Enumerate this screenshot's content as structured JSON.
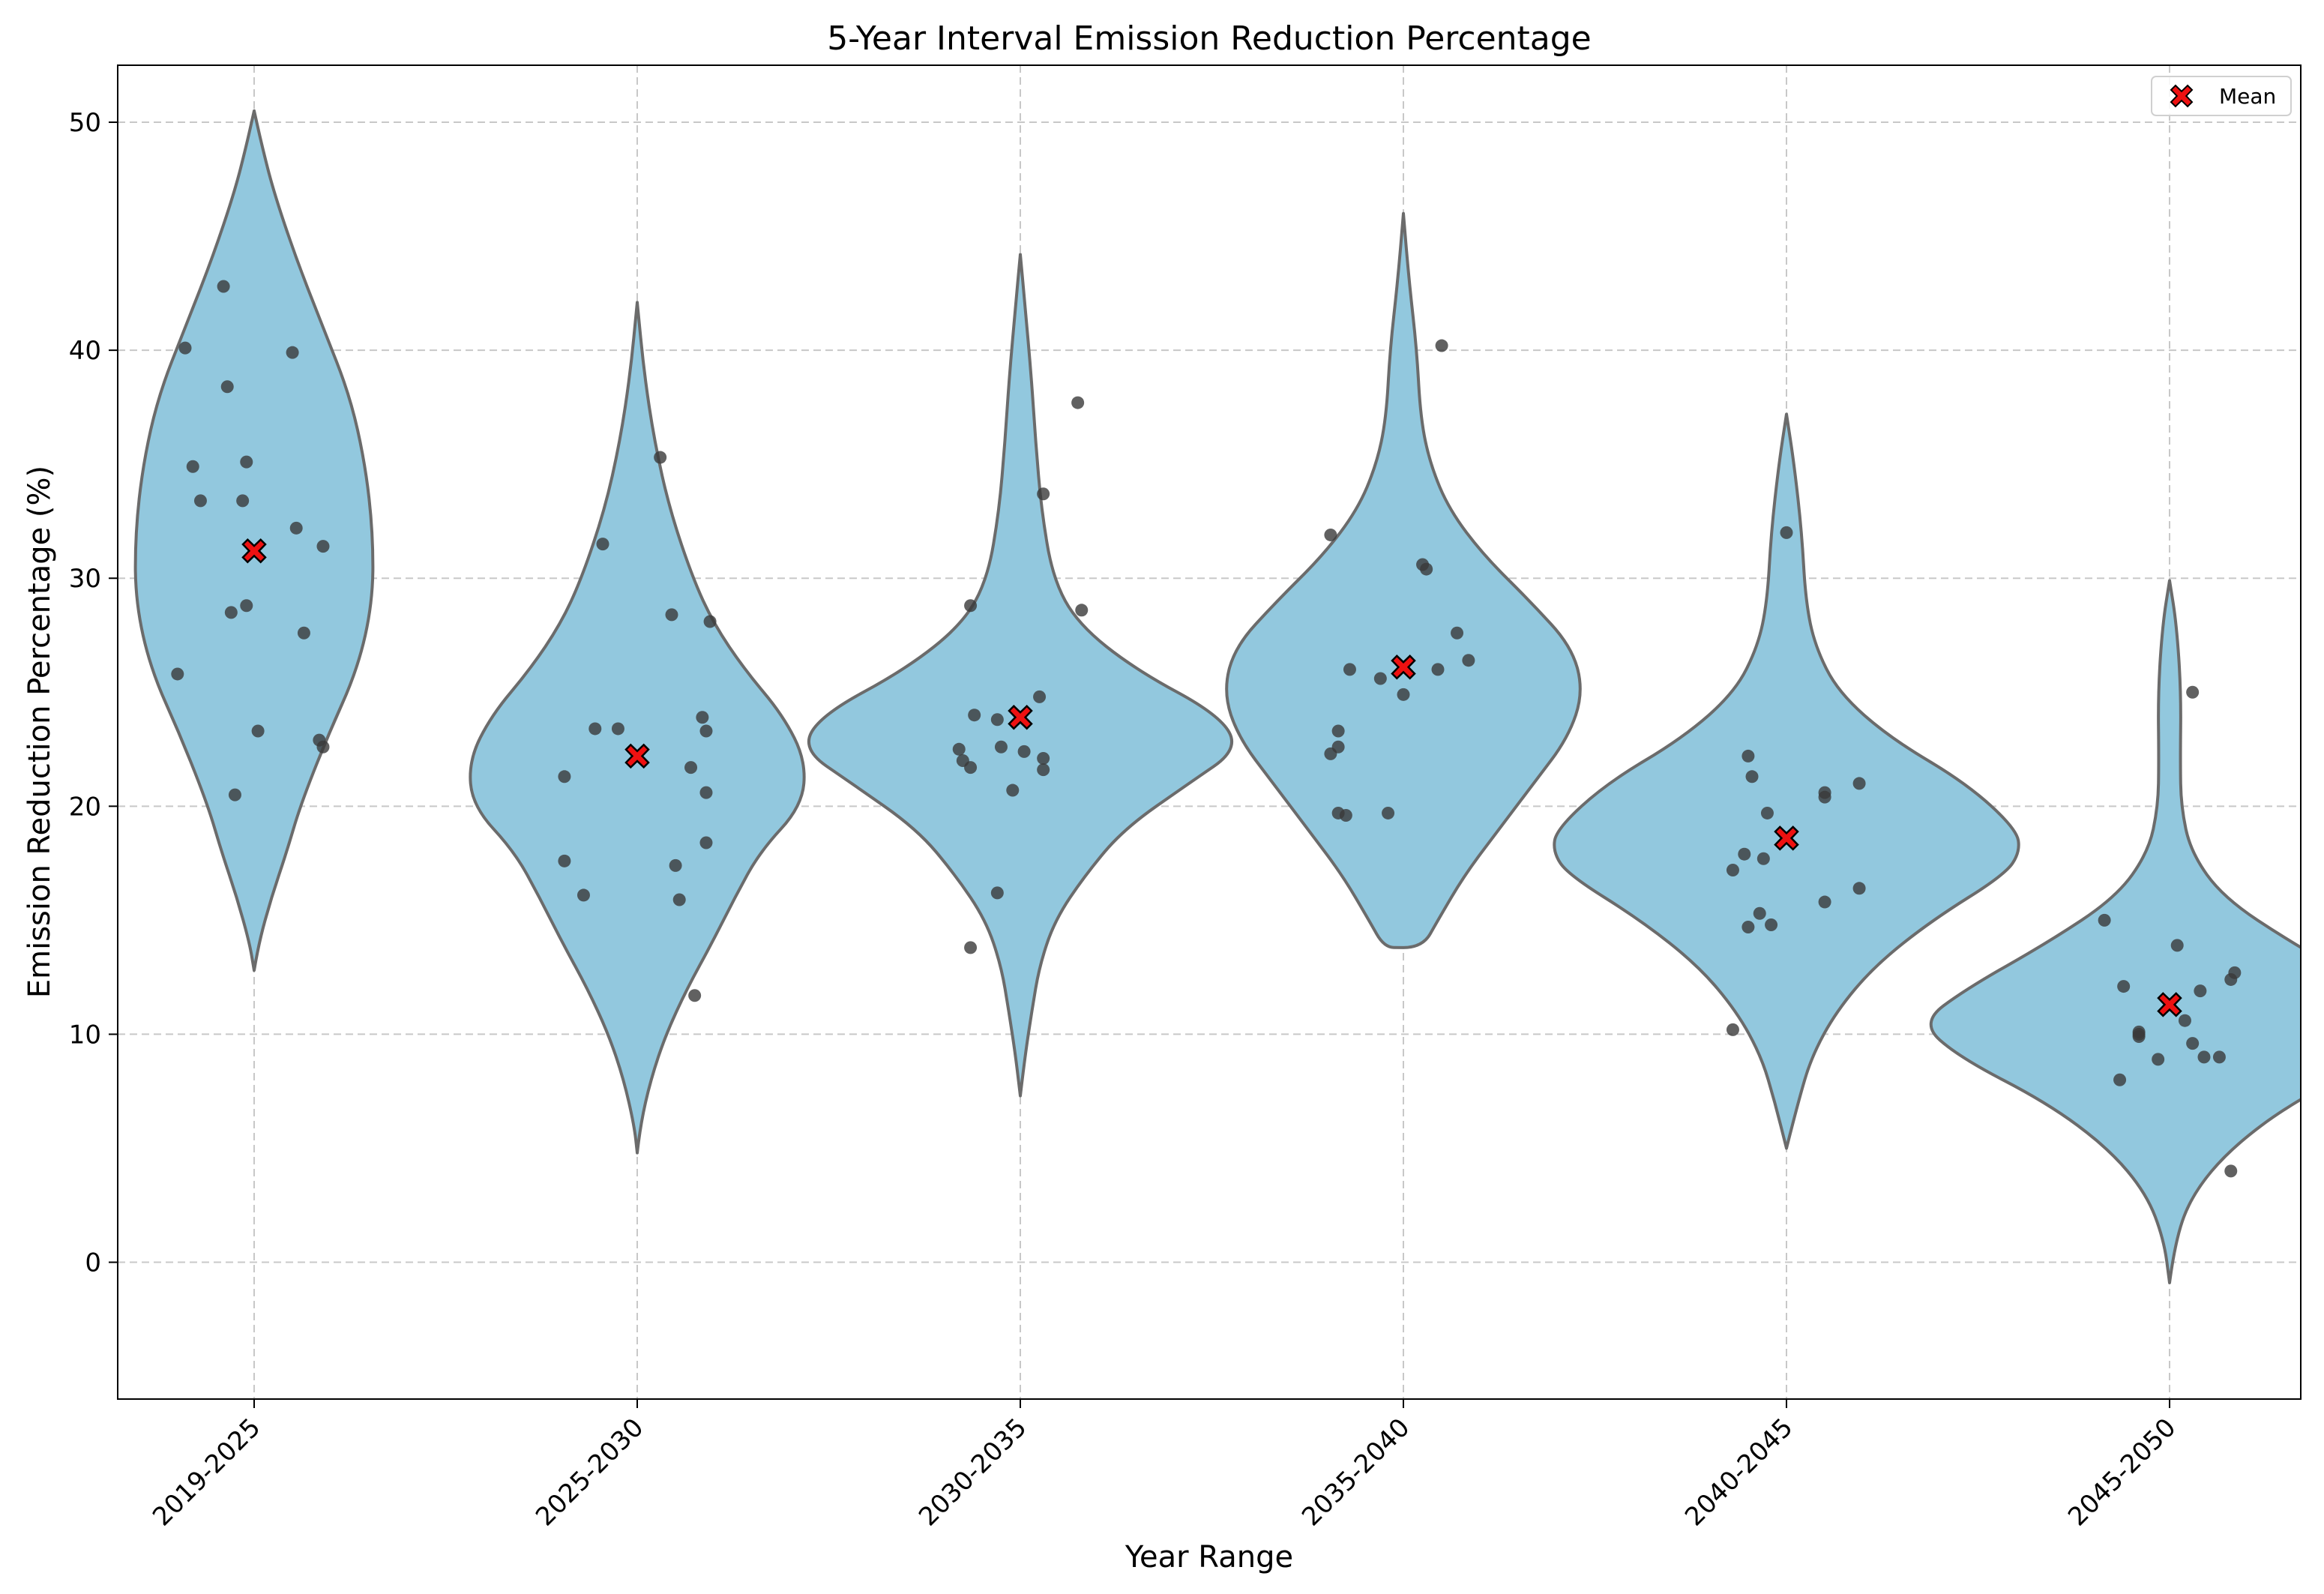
{
  "chart_data": {
    "type": "violin",
    "title": "5-Year Interval Emission Reduction Percentage",
    "xlabel": "Year Range",
    "ylabel": "Emission Reduction Percentage (%)",
    "ylim": [
      -6,
      52.5
    ],
    "yticks": [
      0,
      10,
      20,
      30,
      40,
      50
    ],
    "grid": true,
    "legend": {
      "position": "top-right",
      "entries": [
        {
          "label": "Mean",
          "marker": "red-x"
        }
      ]
    },
    "colors": {
      "violin_fill": "#92c8de",
      "violin_edge": "#6b6b6b",
      "point": "#3a3a3a",
      "mean_fill": "#ee1111",
      "grid": "#c8c8c8"
    },
    "categories": [
      "2019-2025",
      "2025-2030",
      "2030-2035",
      "2035-2040",
      "2040-2045",
      "2045-2050"
    ],
    "groups": [
      {
        "category": "2019-2025",
        "mean": 31.2,
        "points": [
          {
            "x": 0.18,
            "y": 31.4
          },
          {
            "x": -0.08,
            "y": 42.8
          },
          {
            "x": -0.18,
            "y": 40.1
          },
          {
            "x": 0.1,
            "y": 39.9
          },
          {
            "x": -0.07,
            "y": 38.4
          },
          {
            "x": -0.02,
            "y": 35.1
          },
          {
            "x": -0.16,
            "y": 34.9
          },
          {
            "x": -0.14,
            "y": 33.4
          },
          {
            "x": -0.03,
            "y": 33.4
          },
          {
            "x": 0.11,
            "y": 32.2
          },
          {
            "x": -0.06,
            "y": 28.5
          },
          {
            "x": -0.02,
            "y": 28.8
          },
          {
            "x": 0.13,
            "y": 27.6
          },
          {
            "x": -0.2,
            "y": 25.8
          },
          {
            "x": 0.01,
            "y": 23.3
          },
          {
            "x": 0.17,
            "y": 22.9
          },
          {
            "x": 0.18,
            "y": 22.6
          },
          {
            "x": -0.05,
            "y": 20.5
          }
        ],
        "kde": [
          {
            "y": 12.8,
            "w": 0.0
          },
          {
            "y": 14.0,
            "w": 0.012
          },
          {
            "y": 16.0,
            "w": 0.045
          },
          {
            "y": 18.0,
            "w": 0.085
          },
          {
            "y": 20.0,
            "w": 0.12
          },
          {
            "y": 23.0,
            "w": 0.19
          },
          {
            "y": 26.0,
            "w": 0.27
          },
          {
            "y": 29.0,
            "w": 0.31
          },
          {
            "y": 32.0,
            "w": 0.31
          },
          {
            "y": 35.0,
            "w": 0.29
          },
          {
            "y": 38.0,
            "w": 0.25
          },
          {
            "y": 41.0,
            "w": 0.18
          },
          {
            "y": 44.0,
            "w": 0.11
          },
          {
            "y": 47.0,
            "w": 0.05
          },
          {
            "y": 49.0,
            "w": 0.02
          },
          {
            "y": 50.5,
            "w": 0.0
          }
        ]
      },
      {
        "category": "2025-2030",
        "mean": 22.2,
        "points": [
          {
            "x": 0.06,
            "y": 35.3
          },
          {
            "x": -0.09,
            "y": 31.5
          },
          {
            "x": 0.09,
            "y": 28.4
          },
          {
            "x": 0.19,
            "y": 28.1
          },
          {
            "x": 0.17,
            "y": 23.9
          },
          {
            "x": -0.11,
            "y": 23.4
          },
          {
            "x": -0.05,
            "y": 23.4
          },
          {
            "x": 0.18,
            "y": 23.3
          },
          {
            "x": 0.14,
            "y": 21.7
          },
          {
            "x": -0.19,
            "y": 21.3
          },
          {
            "x": 0.18,
            "y": 20.6
          },
          {
            "x": 0.18,
            "y": 18.4
          },
          {
            "x": -0.19,
            "y": 17.6
          },
          {
            "x": 0.1,
            "y": 17.4
          },
          {
            "x": -0.14,
            "y": 16.1
          },
          {
            "x": 0.11,
            "y": 15.9
          },
          {
            "x": 0.15,
            "y": 11.7
          }
        ],
        "kde": [
          {
            "y": 4.8,
            "w": 0.0
          },
          {
            "y": 6.0,
            "w": 0.008
          },
          {
            "y": 8.0,
            "w": 0.035
          },
          {
            "y": 10.0,
            "w": 0.075
          },
          {
            "y": 12.0,
            "w": 0.13
          },
          {
            "y": 14.0,
            "w": 0.195
          },
          {
            "y": 16.0,
            "w": 0.255
          },
          {
            "y": 18.0,
            "w": 0.32
          },
          {
            "y": 20.0,
            "w": 0.43
          },
          {
            "y": 22.0,
            "w": 0.44
          },
          {
            "y": 24.0,
            "w": 0.38
          },
          {
            "y": 26.0,
            "w": 0.28
          },
          {
            "y": 28.0,
            "w": 0.2
          },
          {
            "y": 30.0,
            "w": 0.145
          },
          {
            "y": 33.0,
            "w": 0.085
          },
          {
            "y": 36.0,
            "w": 0.045
          },
          {
            "y": 39.0,
            "w": 0.018
          },
          {
            "y": 42.1,
            "w": 0.0
          }
        ]
      },
      {
        "category": "2030-2035",
        "mean": 23.9,
        "points": [
          {
            "x": 0.15,
            "y": 37.7
          },
          {
            "x": 0.06,
            "y": 33.7
          },
          {
            "x": -0.13,
            "y": 28.8
          },
          {
            "x": 0.16,
            "y": 28.6
          },
          {
            "x": 0.05,
            "y": 24.8
          },
          {
            "x": -0.12,
            "y": 24.0
          },
          {
            "x": -0.06,
            "y": 23.8
          },
          {
            "x": -0.16,
            "y": 22.5
          },
          {
            "x": -0.05,
            "y": 22.6
          },
          {
            "x": 0.01,
            "y": 22.4
          },
          {
            "x": 0.06,
            "y": 22.1
          },
          {
            "x": -0.15,
            "y": 22.0
          },
          {
            "x": -0.13,
            "y": 21.7
          },
          {
            "x": 0.06,
            "y": 21.6
          },
          {
            "x": -0.02,
            "y": 20.7
          },
          {
            "x": -0.06,
            "y": 16.2
          },
          {
            "x": -0.13,
            "y": 13.8
          }
        ],
        "kde": [
          {
            "y": 7.3,
            "w": 0.0
          },
          {
            "y": 9.0,
            "w": 0.012
          },
          {
            "y": 11.0,
            "w": 0.03
          },
          {
            "y": 13.0,
            "w": 0.05
          },
          {
            "y": 15.0,
            "w": 0.09
          },
          {
            "y": 17.0,
            "w": 0.17
          },
          {
            "y": 19.0,
            "w": 0.27
          },
          {
            "y": 21.0,
            "w": 0.44
          },
          {
            "y": 22.5,
            "w": 0.57
          },
          {
            "y": 24.0,
            "w": 0.52
          },
          {
            "y": 26.0,
            "w": 0.3
          },
          {
            "y": 28.0,
            "w": 0.15
          },
          {
            "y": 30.0,
            "w": 0.085
          },
          {
            "y": 33.0,
            "w": 0.055
          },
          {
            "y": 36.0,
            "w": 0.04
          },
          {
            "y": 39.0,
            "w": 0.028
          },
          {
            "y": 42.0,
            "w": 0.012
          },
          {
            "y": 44.2,
            "w": 0.0
          }
        ]
      },
      {
        "category": "2035-2040",
        "mean": 26.1,
        "points": [
          {
            "x": 0.1,
            "y": 40.2
          },
          {
            "x": -0.19,
            "y": 31.9
          },
          {
            "x": 0.05,
            "y": 30.6
          },
          {
            "x": 0.06,
            "y": 30.4
          },
          {
            "x": 0.14,
            "y": 27.6
          },
          {
            "x": 0.17,
            "y": 26.4
          },
          {
            "x": -0.14,
            "y": 26.0
          },
          {
            "x": 0.09,
            "y": 26.0
          },
          {
            "x": -0.06,
            "y": 25.6
          },
          {
            "x": 0.0,
            "y": 24.9
          },
          {
            "x": -0.17,
            "y": 23.3
          },
          {
            "x": -0.17,
            "y": 22.6
          },
          {
            "x": -0.19,
            "y": 22.3
          },
          {
            "x": -0.04,
            "y": 19.7
          },
          {
            "x": -0.15,
            "y": 19.6
          },
          {
            "x": -0.17,
            "y": 19.7
          }
        ],
        "kde": [
          {
            "y": 13.8,
            "w": 0.0
          },
          {
            "y": 13.81,
            "w": 0.05
          },
          {
            "y": 15.0,
            "w": 0.09
          },
          {
            "y": 17.0,
            "w": 0.16
          },
          {
            "y": 19.0,
            "w": 0.25
          },
          {
            "y": 21.0,
            "w": 0.34
          },
          {
            "y": 23.0,
            "w": 0.43
          },
          {
            "y": 25.0,
            "w": 0.47
          },
          {
            "y": 27.0,
            "w": 0.44
          },
          {
            "y": 29.0,
            "w": 0.33
          },
          {
            "y": 31.0,
            "w": 0.21
          },
          {
            "y": 33.0,
            "w": 0.12
          },
          {
            "y": 35.0,
            "w": 0.07
          },
          {
            "y": 37.0,
            "w": 0.045
          },
          {
            "y": 40.0,
            "w": 0.035
          },
          {
            "y": 43.0,
            "w": 0.015
          },
          {
            "y": 46.0,
            "w": 0.0
          }
        ]
      },
      {
        "category": "2040-2045",
        "mean": 18.6,
        "points": [
          {
            "x": 0.0,
            "y": 32.0
          },
          {
            "x": -0.1,
            "y": 22.2
          },
          {
            "x": -0.09,
            "y": 21.3
          },
          {
            "x": 0.19,
            "y": 21.0
          },
          {
            "x": 0.1,
            "y": 20.6
          },
          {
            "x": 0.1,
            "y": 20.4
          },
          {
            "x": -0.05,
            "y": 19.7
          },
          {
            "x": -0.11,
            "y": 17.9
          },
          {
            "x": -0.06,
            "y": 17.7
          },
          {
            "x": -0.14,
            "y": 17.2
          },
          {
            "x": 0.19,
            "y": 16.4
          },
          {
            "x": 0.1,
            "y": 15.8
          },
          {
            "x": -0.07,
            "y": 15.3
          },
          {
            "x": -0.04,
            "y": 14.8
          },
          {
            "x": -0.1,
            "y": 14.7
          },
          {
            "x": -0.14,
            "y": 10.2
          }
        ],
        "kde": [
          {
            "y": 5.0,
            "w": 0.0
          },
          {
            "y": 7.0,
            "w": 0.03
          },
          {
            "y": 9.0,
            "w": 0.065
          },
          {
            "y": 11.0,
            "w": 0.13
          },
          {
            "y": 13.0,
            "w": 0.23
          },
          {
            "y": 15.0,
            "w": 0.38
          },
          {
            "y": 17.0,
            "w": 0.57
          },
          {
            "y": 18.0,
            "w": 0.61
          },
          {
            "y": 19.0,
            "w": 0.6
          },
          {
            "y": 21.0,
            "w": 0.47
          },
          {
            "y": 23.0,
            "w": 0.27
          },
          {
            "y": 25.0,
            "w": 0.135
          },
          {
            "y": 27.0,
            "w": 0.075
          },
          {
            "y": 29.0,
            "w": 0.05
          },
          {
            "y": 32.0,
            "w": 0.04
          },
          {
            "y": 35.0,
            "w": 0.02
          },
          {
            "y": 37.2,
            "w": 0.0
          }
        ]
      },
      {
        "category": "2045-2050",
        "mean": 11.3,
        "points": [
          {
            "x": 0.06,
            "y": 25.0
          },
          {
            "x": -0.17,
            "y": 15.0
          },
          {
            "x": 0.02,
            "y": 13.9
          },
          {
            "x": 0.17,
            "y": 12.7
          },
          {
            "x": 0.16,
            "y": 12.4
          },
          {
            "x": -0.12,
            "y": 12.1
          },
          {
            "x": 0.08,
            "y": 11.9
          },
          {
            "x": 0.04,
            "y": 10.6
          },
          {
            "x": -0.08,
            "y": 10.1
          },
          {
            "x": -0.08,
            "y": 10.0
          },
          {
            "x": -0.08,
            "y": 9.9
          },
          {
            "x": 0.06,
            "y": 9.6
          },
          {
            "x": 0.09,
            "y": 9.0
          },
          {
            "x": 0.13,
            "y": 9.0
          },
          {
            "x": -0.03,
            "y": 8.9
          },
          {
            "x": -0.13,
            "y": 8.0
          },
          {
            "x": 0.16,
            "y": 4.0
          }
        ],
        "kde": [
          {
            "y": -0.9,
            "w": 0.0
          },
          {
            "y": 1.0,
            "w": 0.015
          },
          {
            "y": 3.0,
            "w": 0.06
          },
          {
            "y": 5.0,
            "w": 0.16
          },
          {
            "y": 7.0,
            "w": 0.32
          },
          {
            "y": 9.0,
            "w": 0.55
          },
          {
            "y": 10.5,
            "w": 0.65
          },
          {
            "y": 12.0,
            "w": 0.53
          },
          {
            "y": 14.0,
            "w": 0.32
          },
          {
            "y": 16.0,
            "w": 0.14
          },
          {
            "y": 18.0,
            "w": 0.055
          },
          {
            "y": 20.0,
            "w": 0.03
          },
          {
            "y": 22.0,
            "w": 0.028
          },
          {
            "y": 25.0,
            "w": 0.03
          },
          {
            "y": 28.0,
            "w": 0.018
          },
          {
            "y": 29.9,
            "w": 0.0
          }
        ]
      }
    ]
  }
}
